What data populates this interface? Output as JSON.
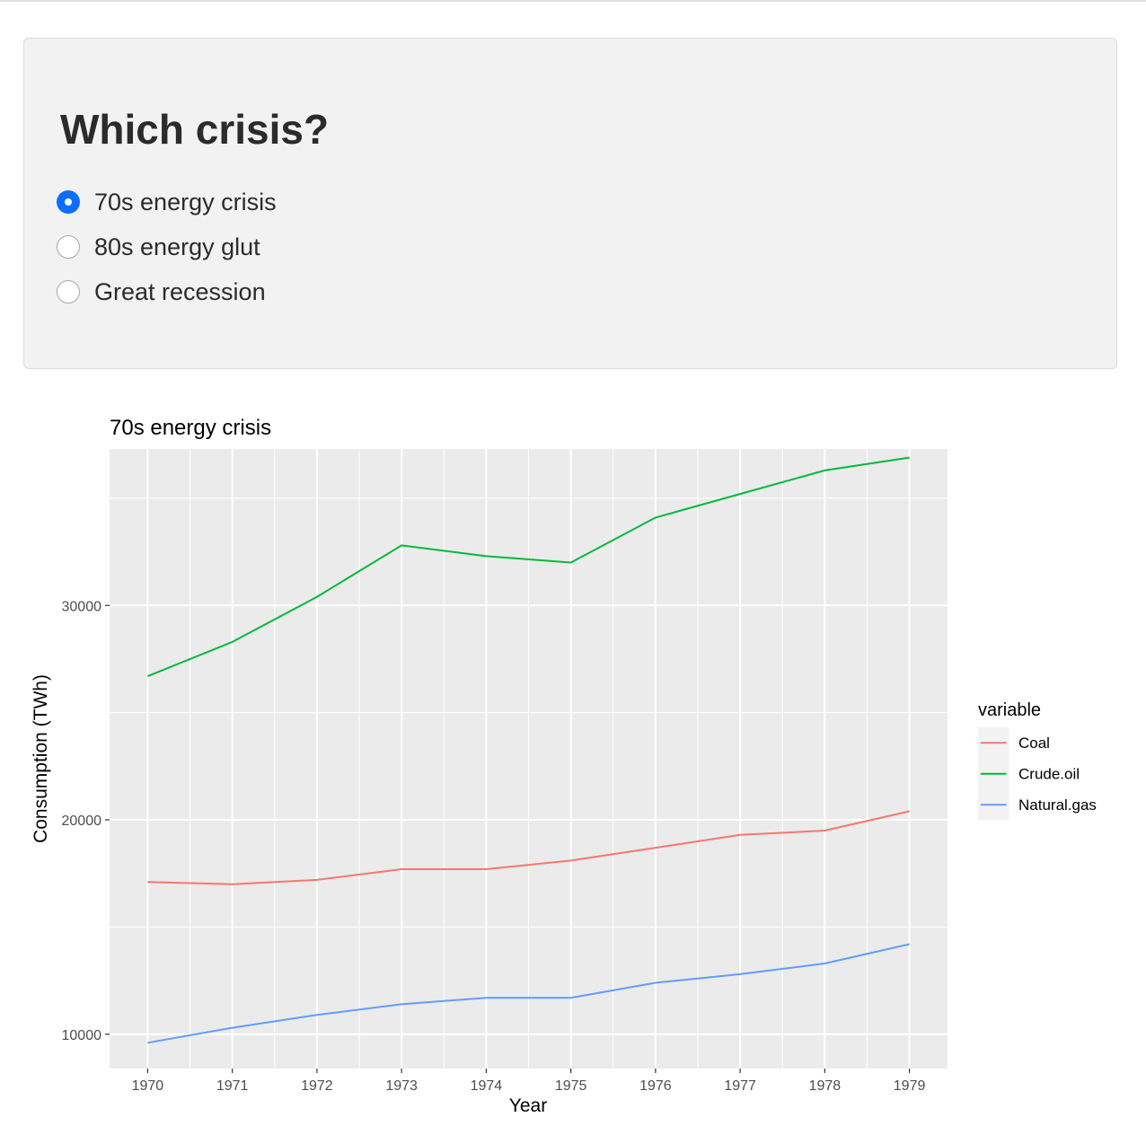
{
  "panel": {
    "heading": "Which crisis?",
    "options": [
      {
        "label": "70s energy crisis",
        "selected": true
      },
      {
        "label": "80s energy glut",
        "selected": false
      },
      {
        "label": "Great recession",
        "selected": false
      }
    ]
  },
  "chart_data": {
    "type": "line",
    "title": "70s energy crisis",
    "xlabel": "Year",
    "ylabel": "Consumption (TWh)",
    "x": [
      1970,
      1971,
      1972,
      1973,
      1974,
      1975,
      1976,
      1977,
      1978,
      1979
    ],
    "xlim": [
      1969.55,
      1979.45
    ],
    "ylim": [
      8400,
      37300
    ],
    "yticks": [
      10000,
      20000,
      30000
    ],
    "grid": true,
    "legend": {
      "title": "variable",
      "position": "right"
    },
    "series": [
      {
        "name": "Coal",
        "color": "#F8766D",
        "values": [
          17100,
          17000,
          17200,
          17700,
          17700,
          18100,
          18700,
          19300,
          19500,
          20400
        ]
      },
      {
        "name": "Crude.oil",
        "color": "#00BA38",
        "values": [
          26700,
          28300,
          30400,
          32800,
          32300,
          32000,
          34100,
          35200,
          36300,
          36900
        ]
      },
      {
        "name": "Natural.gas",
        "color": "#619CFF",
        "values": [
          9600,
          10300,
          10900,
          11400,
          11700,
          11700,
          12400,
          12800,
          13300,
          14200
        ]
      }
    ]
  }
}
